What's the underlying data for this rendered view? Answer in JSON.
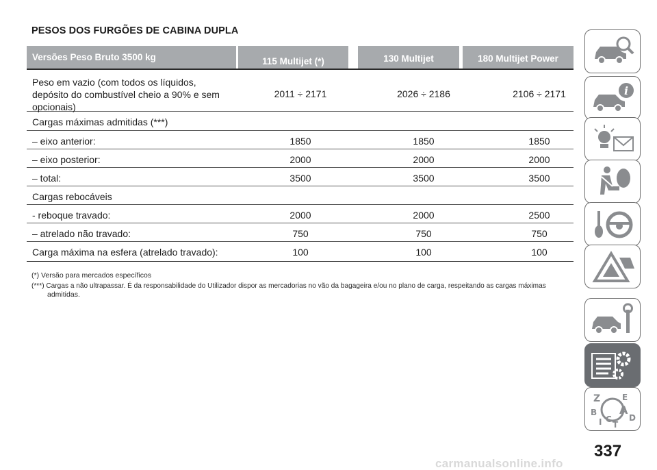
{
  "title": "PESOS DOS FURGÕES DE CABINA DUPLA",
  "table": {
    "headers": [
      "Versões Peso Bruto 3500 kg",
      "115 Multijet (*)",
      "130 Multijet",
      "180 Multijet Power"
    ],
    "rows": [
      {
        "label": [
          "Peso em vazio (com todos os líquidos,",
          "depósito do combustível cheio a 90% e sem",
          "opcionais)"
        ],
        "values": [
          "2011 ÷ 2171",
          "2026 ÷ 2186",
          "2106 ÷ 2171"
        ]
      },
      {
        "label": [
          "Cargas máximas admitidas (***)"
        ],
        "values": [
          "",
          "",
          ""
        ]
      },
      {
        "label": [
          "– eixo anterior:"
        ],
        "values": [
          "1850",
          "1850",
          "1850"
        ]
      },
      {
        "label": [
          "– eixo posterior:"
        ],
        "values": [
          "2000",
          "2000",
          "2000"
        ]
      },
      {
        "label": [
          "– total:"
        ],
        "values": [
          "3500",
          "3500",
          "3500"
        ]
      },
      {
        "label": [
          "Cargas rebocáveis"
        ],
        "values": [
          "",
          "",
          ""
        ]
      },
      {
        "label": [
          "- reboque travado:"
        ],
        "values": [
          "2000",
          "2000",
          "2500"
        ]
      },
      {
        "label": [
          "– atrelado não travado:"
        ],
        "values": [
          "750",
          "750",
          "750"
        ]
      },
      {
        "label": [
          "Carga máxima na esfera (atrelado travado):"
        ],
        "values": [
          "100",
          "100",
          "100"
        ]
      }
    ]
  },
  "notes": {
    "note1": "(*) Versão para mercados específicos",
    "note2_line1": "(***) Cargas a não ultrapassar. É da responsabilidade do Utilizador dispor as mercadorias no vão da bagageira e/ou no plano de carga, respeitando as cargas máximas",
    "note2_line2": "admitidas."
  },
  "sidebar": {
    "tabs": [
      {
        "icon": "car-search-icon",
        "active": false
      },
      {
        "icon": "car-info-icon",
        "active": false
      },
      {
        "icon": "warning-light-message-icon",
        "active": false
      },
      {
        "icon": "seatbelt-airbag-icon",
        "active": false
      },
      {
        "icon": "key-steering-wheel-icon",
        "active": false
      },
      {
        "icon": "warning-triangle-emergency-icon",
        "active": false
      },
      {
        "icon": "car-maintenance-icon",
        "active": false
      },
      {
        "icon": "technical-data-icon",
        "active": true
      },
      {
        "icon": "alphabetical-index-icon",
        "active": false
      }
    ],
    "active_color": "#6a6d71"
  },
  "page_number": "337",
  "watermark": "carmanualsonline.info",
  "colors": {
    "header_bg": "#a7aaad",
    "text": "#1d1d1d"
  }
}
